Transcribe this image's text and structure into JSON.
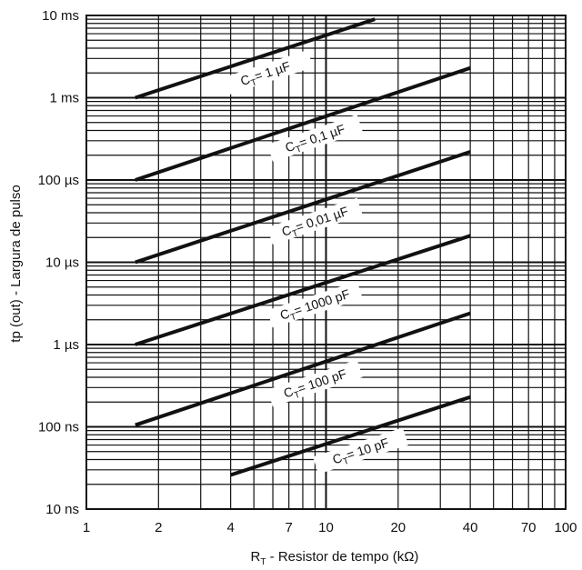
{
  "chart_data": {
    "type": "line",
    "title": "",
    "xlabel": "R_T - Resistor de tempo (kΩ)",
    "xlabel_main": "R",
    "xlabel_sub": "T",
    "xlabel_rest": " -  Resistor de tempo  (kΩ)",
    "ylabel": "tp (out) - Largura de pulso",
    "x_scale": "log",
    "y_scale": "log",
    "xlim": [
      1,
      100
    ],
    "ylim": [
      1e-08,
      0.01
    ],
    "x_ticks": [
      1,
      2,
      4,
      7,
      10,
      20,
      40,
      70,
      100
    ],
    "x_tick_labels": [
      "1",
      "2",
      "4",
      "7",
      "10",
      "20",
      "40",
      "70",
      "100"
    ],
    "y_ticks": [
      1e-08,
      1e-07,
      1e-06,
      1e-05,
      0.0001,
      0.001,
      0.01
    ],
    "y_tick_labels": [
      "10 ns",
      "100 ns",
      "1 µs",
      "10 µs",
      "100 µs",
      "1 ms",
      "10 ms"
    ],
    "grid": true,
    "legend": "none",
    "series": [
      {
        "name": "CT = 1 µF",
        "cap": "1 µF",
        "x": [
          1.6,
          16
        ],
        "y": [
          0.001,
          0.009
        ]
      },
      {
        "name": "CT = 0,1 µF",
        "cap": "0,1 µF",
        "x": [
          1.6,
          40
        ],
        "y": [
          0.0001,
          0.0023
        ]
      },
      {
        "name": "CT = 0,01 µF",
        "cap": "0,01 µF",
        "x": [
          1.6,
          40
        ],
        "y": [
          1e-05,
          0.00022
        ]
      },
      {
        "name": "CT = 1000 pF",
        "cap": "1000 pF",
        "x": [
          1.6,
          40
        ],
        "y": [
          1e-06,
          2.1e-05
        ]
      },
      {
        "name": "CT = 100 pF",
        "cap": "100 pF",
        "x": [
          1.6,
          40
        ],
        "y": [
          1.05e-07,
          2.4e-06
        ]
      },
      {
        "name": "CT = 10 pF",
        "cap": "10 pF",
        "x": [
          4,
          40
        ],
        "y": [
          2.6e-08,
          2.3e-07
        ]
      }
    ]
  }
}
